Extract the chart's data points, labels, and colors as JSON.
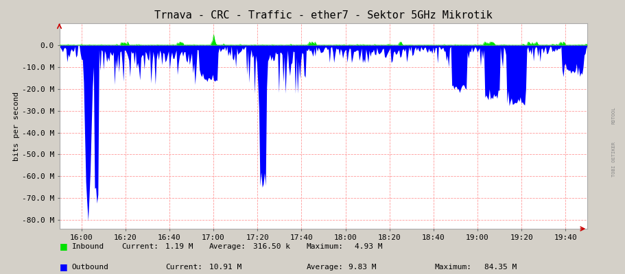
{
  "title": "Trnava - CRC - Traffic - ether7 - Sektor 5GHz Mikrotik",
  "ylabel": "bits per second",
  "background_color": "#d4d0c8",
  "plot_background_color": "#ffffff",
  "grid_color_h": "#ff9999",
  "grid_color_v": "#ff9999",
  "inbound_color": "#00e000",
  "outbound_color": "#0000ff",
  "ylim_min": -84000000,
  "ylim_max": 10000000,
  "yticks": [
    0,
    -10000000,
    -20000000,
    -30000000,
    -40000000,
    -50000000,
    -60000000,
    -70000000,
    -80000000
  ],
  "ytick_labels": [
    "0.0",
    "-10.0 M",
    "-20.0 M",
    "-30.0 M",
    "-40.0 M",
    "-50.0 M",
    "-60.0 M",
    "-70.0 M",
    "-80.0 M"
  ],
  "xtick_labels": [
    "16:00",
    "16:20",
    "16:40",
    "17:00",
    "17:20",
    "17:40",
    "18:00",
    "18:20",
    "18:40",
    "19:00",
    "19:20",
    "19:40"
  ],
  "legend_inbound_label": "Inbound",
  "legend_inbound_current": "1.19 M",
  "legend_inbound_average": "316.50 k",
  "legend_inbound_maximum": "4.93 M",
  "legend_outbound_label": "Outbound",
  "legend_outbound_current": "10.91 M",
  "legend_outbound_average": "9.83 M",
  "legend_outbound_maximum": "84.35 M",
  "watermark": "RDTOOL\nTOBI OETIKER",
  "title_fontsize": 11,
  "axis_fontsize": 8,
  "legend_fontsize": 8
}
